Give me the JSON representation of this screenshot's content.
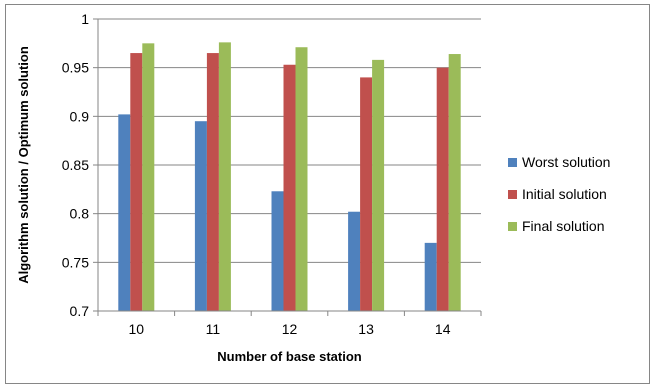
{
  "chart_data": {
    "type": "bar",
    "title": "",
    "xlabel": "Number  of base station",
    "ylabel": "Algorithm solution / Optimum solution",
    "categories": [
      "10",
      "11",
      "12",
      "13",
      "14"
    ],
    "ylim": [
      0.7,
      1
    ],
    "yticks": [
      0.7,
      0.75,
      0.8,
      0.85,
      0.9,
      0.95,
      1
    ],
    "ytick_labels": [
      "0.7",
      "0.75",
      "0.8",
      "0.85",
      "0.9",
      "0.95",
      "1"
    ],
    "grid": true,
    "legend_position": "right",
    "series": [
      {
        "name": "Worst solution",
        "color": "#4F81BD",
        "values": [
          0.902,
          0.895,
          0.823,
          0.802,
          0.77
        ]
      },
      {
        "name": "Initial solution",
        "color": "#C0504D",
        "values": [
          0.965,
          0.965,
          0.953,
          0.94,
          0.95
        ]
      },
      {
        "name": "Final solution",
        "color": "#9BBB59",
        "values": [
          0.975,
          0.976,
          0.971,
          0.958,
          0.964
        ]
      }
    ]
  }
}
